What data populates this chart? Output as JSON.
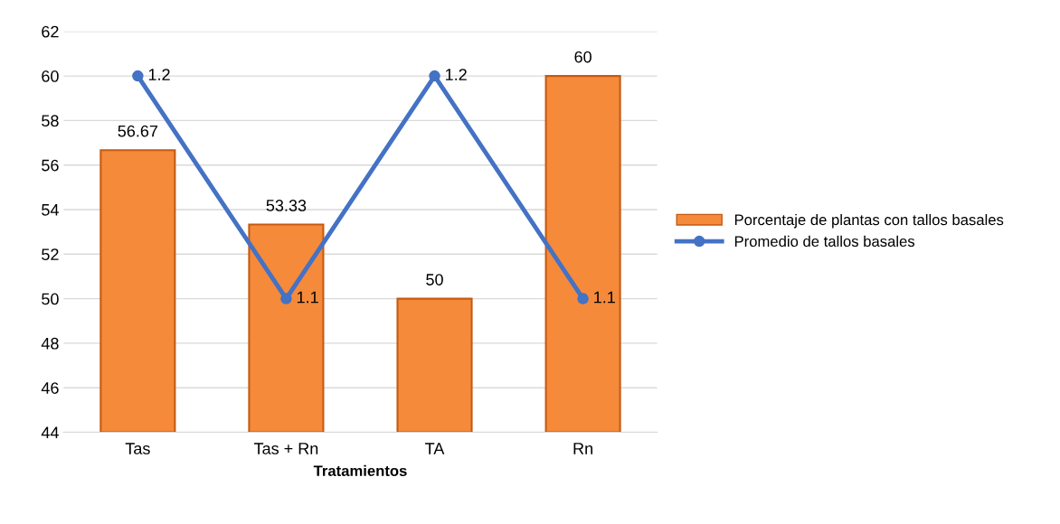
{
  "chart_data": {
    "type": "bar",
    "xlabel": "Tratamientos",
    "categories": [
      "Tas",
      "Tas + Rn",
      "TA",
      "Rn"
    ],
    "series": [
      {
        "name": "Porcentaje de plantas con tallos basales",
        "color": "#f58a3b",
        "values": [
          56.67,
          53.33,
          50,
          60
        ],
        "value_labels": [
          "56.67",
          "53.33",
          "50",
          "60"
        ]
      },
      {
        "name": "Promedio de tallos basales",
        "type": "line",
        "axis": "y2",
        "color": "#4472c4",
        "values": [
          1.2,
          1.1,
          1.2,
          1.1
        ],
        "value_labels": [
          "1.2",
          "1.1",
          "1.2",
          "1.1"
        ]
      }
    ],
    "ylim": [
      44,
      62
    ],
    "yticks": [
      44,
      46,
      48,
      50,
      52,
      54,
      56,
      58,
      60,
      62
    ],
    "y2lim": [
      1.04,
      1.22
    ],
    "tick_labels": "xy",
    "grid": "y",
    "legend": "right",
    "marker": "circle",
    "line_style": "solid"
  }
}
